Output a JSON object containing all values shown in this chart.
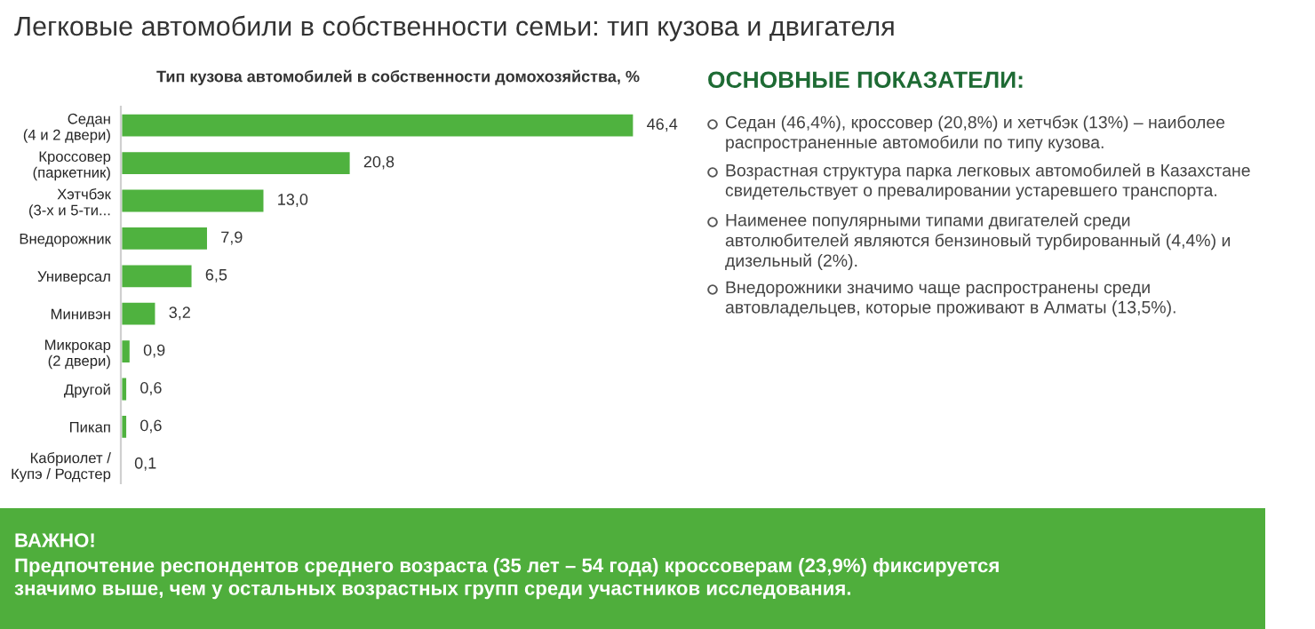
{
  "chart_data": {
    "type": "bar",
    "orientation": "horizontal",
    "title": "Легковые автомобили в собственности семьи: тип кузова и двигателя",
    "subtitle": "Тип кузова автомобилей в собственности домохозяйства, %",
    "categories": [
      "Седан\n(4 и 2 двери)",
      "Кроссовер\n(паркетник)",
      "Хэтчбэк\n(3-х и 5-ти...",
      "Внедорожник",
      "Универсал",
      "Минивэн",
      "Микрокар\n(2 двери)",
      "Другой",
      "Пикап",
      "Кабриолет /\nКупэ / Родстер"
    ],
    "values": [
      46.4,
      20.8,
      13.0,
      7.9,
      6.5,
      3.2,
      0.9,
      0.6,
      0.6,
      0.1
    ],
    "value_labels": [
      "46,4",
      "20,8",
      "13,0",
      "7,9",
      "6,5",
      "3,2",
      "0,9",
      "0,6",
      "0,6",
      "0,1"
    ],
    "color": "#4fb23f",
    "grid": false,
    "legend": false,
    "annotations": [
      "ОСНОВНЫЕ ПОКАЗАТЕЛИ:",
      "Седан (46,4%), кроссовер (20,8%) и хетчбэк (13%) – наиболее\nраспространенные автомобили по типу кузова.",
      "Возрастная структура парка легковых автомобилей в Казахстане\nсвидетельствует о превалировании устаревшего транспорта.",
      "Наименее популярными типами двигателей среди\nавтолюбителей являются бензиновый турбированный (4,4%) и\nдизельный (2%).",
      "Внедорожники значимо чаще распространены среди\nавтовладельцев, которые проживают в Алматы (13,5%).",
      "ВАЖНО!",
      "Предпочтение респондентов среднего возраста (35 лет – 54 года) кроссоверам (23,9%) фиксируется\nзначимо выше, чем у остальных возрастных групп среди участников исследования."
    ]
  }
}
